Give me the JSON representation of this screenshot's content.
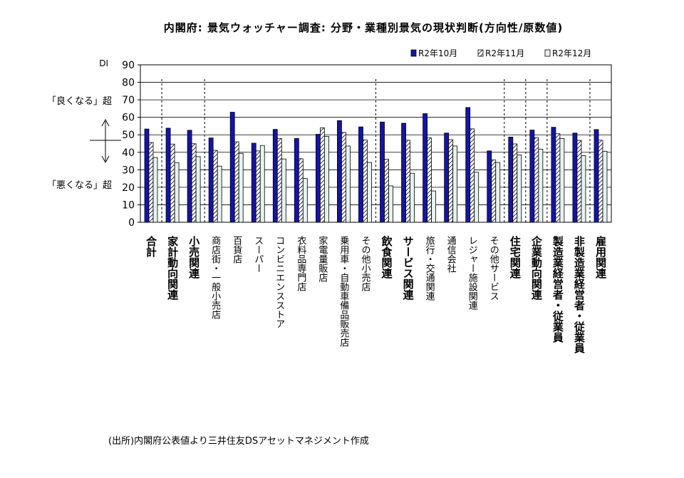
{
  "chart_data": {
    "type": "bar",
    "title": "内閣府: 景気ウォッチャー調査: 分野・業種別景気の現状判断(方向性/原数値)",
    "ylabel": "DI",
    "ylim": [
      0,
      90
    ],
    "yticks": [
      0,
      10,
      20,
      30,
      40,
      50,
      60,
      70,
      80,
      90
    ],
    "grid": true,
    "legend_position": "top-right",
    "categories": [
      {
        "label": "合計",
        "bold": true
      },
      {
        "label": "家計動向関連",
        "bold": true
      },
      {
        "label": "小売関連",
        "bold": true
      },
      {
        "label": "商店街・一般小売店",
        "bold": false
      },
      {
        "label": "百貨店",
        "bold": false
      },
      {
        "label": "スーパー",
        "bold": false
      },
      {
        "label": "コンビニエンスストア",
        "bold": false
      },
      {
        "label": "衣料品専門店",
        "bold": false
      },
      {
        "label": "家電量販店",
        "bold": false
      },
      {
        "label": "乗用車・自動車備品販売店",
        "bold": false
      },
      {
        "label": "その他小売店",
        "bold": false
      },
      {
        "label": "飲食関連",
        "bold": true
      },
      {
        "label": "サービス関連",
        "bold": true
      },
      {
        "label": "旅行・交通関連",
        "bold": false
      },
      {
        "label": "通信会社",
        "bold": false
      },
      {
        "label": "レジャー施設関連",
        "bold": false
      },
      {
        "label": "その他サービス",
        "bold": false
      },
      {
        "label": "住宅関連",
        "bold": true
      },
      {
        "label": "企業動向関連",
        "bold": true
      },
      {
        "label": "製造業経営者・従業員",
        "bold": true
      },
      {
        "label": "非製造業経営者・従業員",
        "bold": true
      },
      {
        "label": "雇用関連",
        "bold": true
      }
    ],
    "series": [
      {
        "name": "R2年10月",
        "style": "solid",
        "color": "#1414a8",
        "values": [
          53.3,
          53.8,
          52.6,
          48.2,
          62.9,
          45.2,
          53.1,
          47.9,
          50.3,
          58.1,
          54.5,
          57.3,
          56.6,
          62.1,
          51.0,
          65.6,
          40.8,
          48.7,
          52.7,
          54.3,
          51.0,
          53.0
        ]
      },
      {
        "name": "R2年11月",
        "style": "hatched",
        "color": "#000000",
        "values": [
          45.6,
          44.7,
          44.9,
          41.1,
          46.0,
          40.8,
          47.9,
          36.3,
          54.0,
          51.4,
          47.0,
          36.0,
          46.9,
          48.2,
          47.2,
          53.4,
          35.6,
          44.8,
          48.3,
          50.6,
          46.8,
          46.9
        ]
      },
      {
        "name": "R2年12月",
        "style": "light",
        "color": "#e6f2f0",
        "values": [
          37.0,
          34.1,
          37.5,
          32.1,
          39.4,
          43.9,
          36.2,
          25.0,
          49.1,
          43.6,
          34.2,
          20.8,
          28.0,
          17.9,
          43.6,
          28.6,
          34.2,
          38.5,
          41.8,
          47.9,
          38.1,
          40.6
        ]
      }
    ],
    "separators_after": [
      0,
      2,
      10,
      16,
      17,
      18,
      20
    ],
    "annotations": {
      "good": "「良くなる」超",
      "bad": "「悪くなる」超"
    }
  },
  "source": "(出所)内閣府公表値より三井住友DSアセットマネジメント作成"
}
